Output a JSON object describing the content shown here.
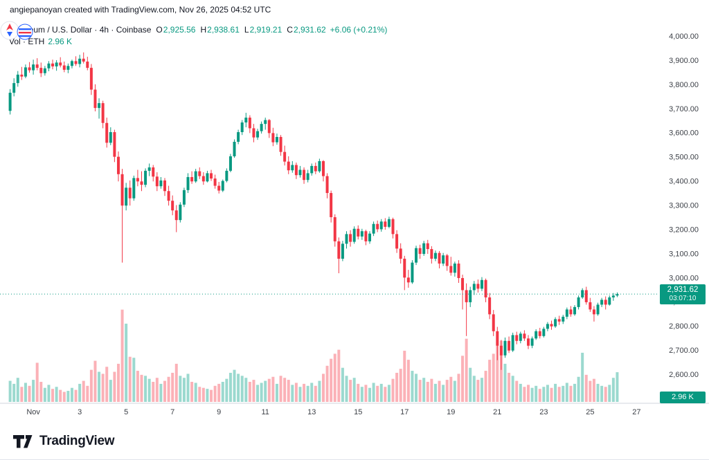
{
  "attribution": {
    "text": "angiepanoyan created with TradingView.com, Nov 26, 2025 04:52 UTC"
  },
  "legend": {
    "title": "Ethereum / U.S. Dollar · 4h · Coinbase",
    "ohlc": {
      "o_label": "O",
      "o_value": "2,925.56",
      "h_label": "H",
      "h_value": "2,938.61",
      "l_label": "L",
      "l_value": "2,919.21",
      "c_label": "C",
      "c_value": "2,931.62",
      "change": "+6.06 (+0.21%)"
    },
    "volume_label": "Vol · ETH",
    "volume_value": "2.96 K"
  },
  "price_axis": {
    "badge": {
      "price": "2,931.62",
      "countdown": "03:07:10"
    },
    "volume_badge": "2.96 K"
  },
  "footer": {
    "brand": "TradingView"
  },
  "colors": {
    "up": "#089981",
    "down": "#f23645",
    "vol_up": "#22ab94",
    "vol_down": "#f7525f",
    "axis_text": "#3a3e45",
    "axis_line": "#d1d4dc",
    "badge": "#089981"
  },
  "chart_data": {
    "type": "candlestick+volume",
    "title": "Ethereum / U.S. Dollar",
    "exchange": "Coinbase",
    "interval": "4h",
    "start": "Oct 31 00:00 UTC",
    "end": "Nov 26 04:00 UTC",
    "step_hours": 4,
    "price_range": [
      2600,
      4000
    ],
    "last_price": 2931.62,
    "last_volume_k": 2.96,
    "price_ticks": [
      {
        "t": "4,000.00",
        "v": 4000
      },
      {
        "t": "3,900.00",
        "v": 3900
      },
      {
        "t": "3,800.00",
        "v": 3800
      },
      {
        "t": "3,700.00",
        "v": 3700
      },
      {
        "t": "3,600.00",
        "v": 3600
      },
      {
        "t": "3,500.00",
        "v": 3500
      },
      {
        "t": "3,400.00",
        "v": 3400
      },
      {
        "t": "3,300.00",
        "v": 3300
      },
      {
        "t": "3,200.00",
        "v": 3200
      },
      {
        "t": "3,100.00",
        "v": 3100
      },
      {
        "t": "3,000.00",
        "v": 3000
      },
      {
        "t": "2,900.00",
        "v": 2900
      },
      {
        "t": "2,800.00",
        "v": 2800
      },
      {
        "t": "2,700.00",
        "v": 2700
      },
      {
        "t": "2,600.00",
        "v": 2600
      }
    ],
    "time_ticks": [
      {
        "t": "Nov",
        "i": 6
      },
      {
        "t": "3",
        "i": 18
      },
      {
        "t": "5",
        "i": 30
      },
      {
        "t": "7",
        "i": 42
      },
      {
        "t": "9",
        "i": 54
      },
      {
        "t": "11",
        "i": 66
      },
      {
        "t": "13",
        "i": 78
      },
      {
        "t": "15",
        "i": 90
      },
      {
        "t": "17",
        "i": 102
      },
      {
        "t": "19",
        "i": 114
      },
      {
        "t": "21",
        "i": 126
      },
      {
        "t": "23",
        "i": 138
      },
      {
        "t": "25",
        "i": 150
      },
      {
        "t": "27",
        "i": 162
      }
    ],
    "candles": [
      [
        3690,
        3780,
        3675,
        3765,
        2.1
      ],
      [
        3765,
        3825,
        3750,
        3805,
        1.8
      ],
      [
        3805,
        3855,
        3790,
        3840,
        2.4
      ],
      [
        3840,
        3872,
        3818,
        3832,
        1.5
      ],
      [
        3832,
        3882,
        3825,
        3870,
        1.9
      ],
      [
        3870,
        3892,
        3848,
        3858,
        1.6
      ],
      [
        3858,
        3902,
        3840,
        3882,
        2.2
      ],
      [
        3882,
        3908,
        3858,
        3868,
        3.9
      ],
      [
        3868,
        3890,
        3830,
        3846,
        2.0
      ],
      [
        3846,
        3876,
        3836,
        3866,
        1.4
      ],
      [
        3866,
        3896,
        3854,
        3886,
        1.7
      ],
      [
        3886,
        3902,
        3862,
        3874,
        1.3
      ],
      [
        3874,
        3900,
        3856,
        3890,
        1.5
      ],
      [
        3890,
        3912,
        3870,
        3878,
        1.2
      ],
      [
        3878,
        3894,
        3850,
        3860,
        1.0
      ],
      [
        3860,
        3886,
        3846,
        3876,
        1.1
      ],
      [
        3876,
        3902,
        3866,
        3896,
        1.4
      ],
      [
        3896,
        3916,
        3876,
        3884,
        1.2
      ],
      [
        3884,
        3922,
        3870,
        3906,
        1.8
      ],
      [
        3906,
        3932,
        3886,
        3894,
        2.1
      ],
      [
        3894,
        3914,
        3858,
        3868,
        1.6
      ],
      [
        3868,
        3884,
        3756,
        3778,
        3.2
      ],
      [
        3778,
        3800,
        3688,
        3702,
        4.1
      ],
      [
        3702,
        3742,
        3658,
        3722,
        3.0
      ],
      [
        3722,
        3732,
        3618,
        3640,
        2.8
      ],
      [
        3640,
        3662,
        3538,
        3558,
        3.5
      ],
      [
        3558,
        3622,
        3548,
        3602,
        2.2
      ],
      [
        3602,
        3612,
        3478,
        3500,
        3.0
      ],
      [
        3500,
        3522,
        3398,
        3428,
        3.8
      ],
      [
        3428,
        3450,
        3062,
        3298,
        9.2
      ],
      [
        3298,
        3392,
        3278,
        3372,
        7.8
      ],
      [
        3372,
        3402,
        3298,
        3328,
        4.5
      ],
      [
        3328,
        3422,
        3318,
        3412,
        4.4
      ],
      [
        3412,
        3446,
        3378,
        3398,
        3.1
      ],
      [
        3398,
        3440,
        3358,
        3384,
        2.7
      ],
      [
        3384,
        3452,
        3374,
        3442,
        2.6
      ],
      [
        3442,
        3472,
        3420,
        3456,
        2.3
      ],
      [
        3456,
        3466,
        3398,
        3418,
        2.0
      ],
      [
        3418,
        3436,
        3358,
        3378,
        2.4
      ],
      [
        3378,
        3416,
        3368,
        3402,
        1.8
      ],
      [
        3402,
        3412,
        3338,
        3358,
        2.1
      ],
      [
        3358,
        3380,
        3298,
        3318,
        2.5
      ],
      [
        3318,
        3340,
        3258,
        3278,
        2.9
      ],
      [
        3278,
        3300,
        3188,
        3238,
        3.8
      ],
      [
        3238,
        3312,
        3228,
        3302,
        2.6
      ],
      [
        3302,
        3372,
        3292,
        3362,
        2.4
      ],
      [
        3362,
        3432,
        3350,
        3416,
        2.8
      ],
      [
        3416,
        3440,
        3388,
        3398,
        2.0
      ],
      [
        3398,
        3450,
        3392,
        3440,
        1.9
      ],
      [
        3440,
        3456,
        3408,
        3420,
        1.5
      ],
      [
        3420,
        3436,
        3384,
        3398,
        1.4
      ],
      [
        3398,
        3442,
        3394,
        3432,
        1.3
      ],
      [
        3432,
        3446,
        3400,
        3410,
        1.2
      ],
      [
        3410,
        3426,
        3368,
        3380,
        1.6
      ],
      [
        3380,
        3396,
        3348,
        3360,
        1.8
      ],
      [
        3360,
        3406,
        3354,
        3400,
        2.0
      ],
      [
        3400,
        3452,
        3394,
        3442,
        2.3
      ],
      [
        3442,
        3512,
        3436,
        3502,
        2.9
      ],
      [
        3502,
        3572,
        3496,
        3562,
        3.2
      ],
      [
        3562,
        3612,
        3552,
        3602,
        2.8
      ],
      [
        3602,
        3652,
        3590,
        3642,
        2.6
      ],
      [
        3642,
        3682,
        3622,
        3662,
        2.4
      ],
      [
        3662,
        3672,
        3598,
        3618,
        2.0
      ],
      [
        3618,
        3636,
        3560,
        3580,
        2.2
      ],
      [
        3580,
        3616,
        3570,
        3606,
        1.7
      ],
      [
        3606,
        3646,
        3596,
        3636,
        1.9
      ],
      [
        3636,
        3662,
        3612,
        3652,
        2.1
      ],
      [
        3652,
        3656,
        3578,
        3598,
        2.3
      ],
      [
        3598,
        3620,
        3544,
        3560,
        2.5
      ],
      [
        3560,
        3596,
        3550,
        3582,
        1.8
      ],
      [
        3582,
        3590,
        3504,
        3520,
        2.6
      ],
      [
        3520,
        3546,
        3464,
        3480,
        2.4
      ],
      [
        3480,
        3502,
        3428,
        3444,
        2.2
      ],
      [
        3444,
        3482,
        3434,
        3466,
        1.7
      ],
      [
        3466,
        3476,
        3408,
        3424,
        1.9
      ],
      [
        3424,
        3462,
        3414,
        3446,
        1.5
      ],
      [
        3446,
        3456,
        3388,
        3404,
        1.8
      ],
      [
        3404,
        3446,
        3394,
        3432,
        1.6
      ],
      [
        3432,
        3472,
        3422,
        3462,
        1.9
      ],
      [
        3462,
        3476,
        3428,
        3440,
        1.6
      ],
      [
        3440,
        3492,
        3434,
        3482,
        2.1
      ],
      [
        3482,
        3486,
        3398,
        3420,
        2.8
      ],
      [
        3420,
        3432,
        3328,
        3350,
        3.6
      ],
      [
        3350,
        3360,
        3228,
        3250,
        4.3
      ],
      [
        3250,
        3262,
        3128,
        3150,
        4.8
      ],
      [
        3150,
        3166,
        3018,
        3078,
        5.2
      ],
      [
        3078,
        3152,
        3068,
        3140,
        3.4
      ],
      [
        3140,
        3192,
        3120,
        3180,
        2.6
      ],
      [
        3180,
        3196,
        3128,
        3148,
        2.2
      ],
      [
        3148,
        3212,
        3140,
        3202,
        2.4
      ],
      [
        3202,
        3216,
        3158,
        3170,
        1.8
      ],
      [
        3170,
        3202,
        3156,
        3192,
        1.5
      ],
      [
        3192,
        3198,
        3134,
        3150,
        1.7
      ],
      [
        3150,
        3192,
        3140,
        3182,
        1.4
      ],
      [
        3182,
        3232,
        3172,
        3222,
        1.9
      ],
      [
        3222,
        3236,
        3188,
        3200,
        1.6
      ],
      [
        3200,
        3242,
        3190,
        3232,
        1.8
      ],
      [
        3232,
        3246,
        3198,
        3210,
        1.5
      ],
      [
        3210,
        3252,
        3204,
        3242,
        1.7
      ],
      [
        3242,
        3248,
        3162,
        3180,
        2.3
      ],
      [
        3180,
        3196,
        3102,
        3120,
        2.9
      ],
      [
        3120,
        3142,
        3058,
        3078,
        3.3
      ],
      [
        3078,
        3090,
        2948,
        3000,
        5.1
      ],
      [
        3000,
        3032,
        2958,
        2980,
        4.2
      ],
      [
        2980,
        3072,
        2974,
        3062,
        3.1
      ],
      [
        3062,
        3132,
        3052,
        3122,
        2.8
      ],
      [
        3122,
        3136,
        3078,
        3098,
        2.2
      ],
      [
        3098,
        3152,
        3090,
        3142,
        2.4
      ],
      [
        3142,
        3156,
        3098,
        3118,
        2.0
      ],
      [
        3118,
        3130,
        3058,
        3078,
        2.3
      ],
      [
        3078,
        3112,
        3068,
        3102,
        1.8
      ],
      [
        3102,
        3110,
        3038,
        3058,
        2.1
      ],
      [
        3058,
        3102,
        3048,
        3092,
        1.7
      ],
      [
        3092,
        3098,
        3028,
        3048,
        2.2
      ],
      [
        3048,
        3086,
        3008,
        3020,
        2.5
      ],
      [
        3020,
        3066,
        3004,
        3058,
        2.1
      ],
      [
        3058,
        3072,
        2978,
        2998,
        2.8
      ],
      [
        2998,
        3012,
        2868,
        2948,
        4.6
      ],
      [
        2948,
        2976,
        2758,
        2898,
        6.3
      ],
      [
        2898,
        2962,
        2878,
        2948,
        3.4
      ],
      [
        2948,
        2986,
        2928,
        2974,
        2.6
      ],
      [
        2974,
        2992,
        2938,
        2954,
        2.2
      ],
      [
        2954,
        3002,
        2944,
        2990,
        2.4
      ],
      [
        2990,
        2996,
        2898,
        2918,
        3.1
      ],
      [
        2918,
        2936,
        2828,
        2848,
        4.2
      ],
      [
        2848,
        2866,
        2758,
        2778,
        4.8
      ],
      [
        2778,
        2796,
        2658,
        2718,
        5.6
      ],
      [
        2718,
        2742,
        2618,
        2678,
        6.1
      ],
      [
        2678,
        2752,
        2668,
        2738,
        3.8
      ],
      [
        2738,
        2756,
        2688,
        2698,
        2.9
      ],
      [
        2698,
        2772,
        2692,
        2762,
        2.6
      ],
      [
        2762,
        2776,
        2724,
        2738,
        2.1
      ],
      [
        2738,
        2776,
        2728,
        2768,
        1.8
      ],
      [
        2768,
        2782,
        2738,
        2748,
        1.5
      ],
      [
        2748,
        2762,
        2704,
        2718,
        1.7
      ],
      [
        2718,
        2756,
        2708,
        2748,
        1.4
      ],
      [
        2748,
        2786,
        2742,
        2778,
        1.6
      ],
      [
        2778,
        2792,
        2748,
        2758,
        1.3
      ],
      [
        2758,
        2796,
        2752,
        2788,
        1.5
      ],
      [
        2788,
        2816,
        2778,
        2808,
        1.7
      ],
      [
        2808,
        2822,
        2784,
        2798,
        1.4
      ],
      [
        2798,
        2836,
        2792,
        2828,
        1.8
      ],
      [
        2828,
        2842,
        2804,
        2818,
        1.5
      ],
      [
        2818,
        2846,
        2808,
        2838,
        1.6
      ],
      [
        2838,
        2876,
        2828,
        2868,
        1.9
      ],
      [
        2868,
        2882,
        2838,
        2848,
        1.6
      ],
      [
        2848,
        2886,
        2842,
        2878,
        1.8
      ],
      [
        2878,
        2926,
        2868,
        2918,
        2.5
      ],
      [
        2918,
        2956,
        2912,
        2948,
        4.9
      ],
      [
        2948,
        2962,
        2888,
        2898,
        2.7
      ],
      [
        2898,
        2916,
        2858,
        2868,
        2.1
      ],
      [
        2868,
        2882,
        2818,
        2848,
        2.3
      ],
      [
        2848,
        2896,
        2842,
        2888,
        1.8
      ],
      [
        2888,
        2916,
        2878,
        2908,
        1.6
      ],
      [
        2908,
        2922,
        2868,
        2888,
        1.5
      ],
      [
        2888,
        2926,
        2884,
        2918,
        1.7
      ],
      [
        2918,
        2936,
        2904,
        2925.56,
        2.4
      ],
      [
        2925.56,
        2938.61,
        2919.21,
        2931.62,
        2.96
      ]
    ]
  }
}
